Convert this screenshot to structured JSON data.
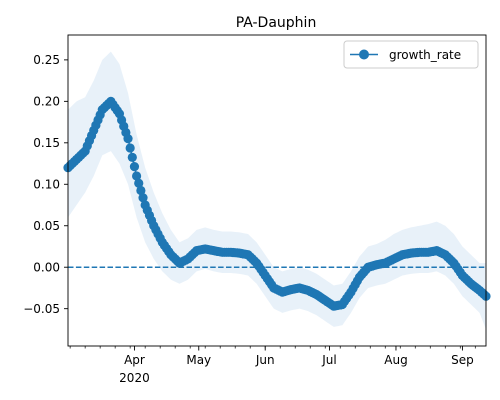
{
  "chart_data": {
    "type": "line",
    "title": "PA-Dauphin",
    "xlabel": "",
    "ylabel": "",
    "x_range": [
      "2020-03-01",
      "2020-09-12"
    ],
    "ylim": [
      -0.095,
      0.28
    ],
    "yticks": [
      -0.05,
      0.0,
      0.05,
      0.1,
      0.15,
      0.2,
      0.25
    ],
    "ytick_labels": [
      "−0.05",
      "0.00",
      "0.05",
      "0.10",
      "0.15",
      "0.20",
      "0.25"
    ],
    "xticks": [
      {
        "date": "2020-04-01",
        "label": "Apr"
      },
      {
        "date": "2020-05-01",
        "label": "May"
      },
      {
        "date": "2020-06-01",
        "label": "Jun"
      },
      {
        "date": "2020-07-01",
        "label": "Jul"
      },
      {
        "date": "2020-08-01",
        "label": "Aug"
      },
      {
        "date": "2020-09-01",
        "label": "Sep"
      }
    ],
    "year_label": "2020",
    "reference_line": {
      "y": 0.0,
      "style": "dashed"
    },
    "grid": false,
    "legend": {
      "position": "top-right",
      "entries": [
        "growth_rate"
      ]
    },
    "colors": {
      "line": "#1f77b4",
      "band": "#dce9f6"
    },
    "series": [
      {
        "name": "growth_rate",
        "marker": "circle",
        "points": [
          [
            "2020-03-01",
            0.12
          ],
          [
            "2020-03-05",
            0.13
          ],
          [
            "2020-03-09",
            0.14
          ],
          [
            "2020-03-13",
            0.165
          ],
          [
            "2020-03-17",
            0.19
          ],
          [
            "2020-03-21",
            0.2
          ],
          [
            "2020-03-25",
            0.185
          ],
          [
            "2020-03-29",
            0.155
          ],
          [
            "2020-04-02",
            0.11
          ],
          [
            "2020-04-06",
            0.075
          ],
          [
            "2020-04-10",
            0.05
          ],
          [
            "2020-04-14",
            0.03
          ],
          [
            "2020-04-18",
            0.015
          ],
          [
            "2020-04-22",
            0.005
          ],
          [
            "2020-04-26",
            0.01
          ],
          [
            "2020-04-30",
            0.02
          ],
          [
            "2020-05-04",
            0.022
          ],
          [
            "2020-05-08",
            0.02
          ],
          [
            "2020-05-12",
            0.018
          ],
          [
            "2020-05-16",
            0.018
          ],
          [
            "2020-05-20",
            0.017
          ],
          [
            "2020-05-24",
            0.015
          ],
          [
            "2020-05-28",
            0.005
          ],
          [
            "2020-06-01",
            -0.01
          ],
          [
            "2020-06-05",
            -0.025
          ],
          [
            "2020-06-09",
            -0.03
          ],
          [
            "2020-06-13",
            -0.027
          ],
          [
            "2020-06-17",
            -0.025
          ],
          [
            "2020-06-21",
            -0.028
          ],
          [
            "2020-06-25",
            -0.033
          ],
          [
            "2020-06-29",
            -0.04
          ],
          [
            "2020-07-03",
            -0.047
          ],
          [
            "2020-07-07",
            -0.045
          ],
          [
            "2020-07-11",
            -0.03
          ],
          [
            "2020-07-15",
            -0.012
          ],
          [
            "2020-07-19",
            0.0
          ],
          [
            "2020-07-23",
            0.003
          ],
          [
            "2020-07-27",
            0.005
          ],
          [
            "2020-07-31",
            0.01
          ],
          [
            "2020-08-04",
            0.015
          ],
          [
            "2020-08-08",
            0.017
          ],
          [
            "2020-08-12",
            0.018
          ],
          [
            "2020-08-16",
            0.018
          ],
          [
            "2020-08-20",
            0.02
          ],
          [
            "2020-08-24",
            0.015
          ],
          [
            "2020-08-28",
            0.005
          ],
          [
            "2020-09-01",
            -0.01
          ],
          [
            "2020-09-05",
            -0.02
          ],
          [
            "2020-09-09",
            -0.028
          ],
          [
            "2020-09-12",
            -0.035
          ]
        ],
        "band_lower": [
          0.06,
          0.075,
          0.09,
          0.11,
          0.135,
          0.14,
          0.125,
          0.1,
          0.06,
          0.03,
          0.01,
          -0.005,
          -0.015,
          -0.02,
          -0.015,
          -0.005,
          -0.002,
          -0.005,
          -0.007,
          -0.007,
          -0.008,
          -0.01,
          -0.02,
          -0.035,
          -0.05,
          -0.055,
          -0.052,
          -0.05,
          -0.053,
          -0.058,
          -0.065,
          -0.072,
          -0.07,
          -0.055,
          -0.037,
          -0.025,
          -0.022,
          -0.02,
          -0.015,
          -0.01,
          -0.008,
          -0.007,
          -0.007,
          -0.005,
          -0.01,
          -0.02,
          -0.035,
          -0.045,
          -0.055,
          -0.075
        ],
        "band_upper": [
          0.19,
          0.2,
          0.205,
          0.225,
          0.25,
          0.26,
          0.245,
          0.21,
          0.16,
          0.12,
          0.09,
          0.065,
          0.045,
          0.03,
          0.035,
          0.045,
          0.048,
          0.045,
          0.043,
          0.043,
          0.042,
          0.04,
          0.03,
          0.015,
          0.0,
          -0.005,
          -0.002,
          0.0,
          -0.003,
          -0.008,
          -0.015,
          -0.022,
          -0.02,
          -0.005,
          0.013,
          0.025,
          0.028,
          0.033,
          0.04,
          0.045,
          0.048,
          0.05,
          0.052,
          0.055,
          0.05,
          0.04,
          0.025,
          0.015,
          0.005,
          0.005
        ]
      }
    ]
  }
}
